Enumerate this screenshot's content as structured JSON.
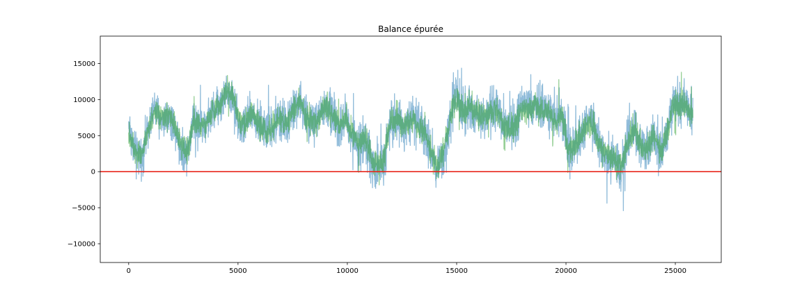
{
  "chart_data": {
    "type": "line",
    "title": "Balance épurée",
    "xlabel": "",
    "ylabel": "",
    "xlim": [
      -1300,
      27100
    ],
    "ylim": [
      -12600,
      18800
    ],
    "grid": false,
    "x_ticks": [
      0,
      5000,
      10000,
      15000,
      20000,
      25000
    ],
    "x_tick_labels": [
      "0",
      "5000",
      "10000",
      "15000",
      "20000",
      "25000"
    ],
    "y_ticks": [
      -10000,
      -5000,
      0,
      5000,
      10000,
      15000
    ],
    "y_tick_labels": [
      "−10000",
      "−5000",
      "0",
      "5000",
      "10000",
      "15000"
    ],
    "series": [
      {
        "color": "#1f77b4",
        "opacity": 0.5,
        "x": [
          0,
          300,
          600,
          900,
          1200,
          1500,
          1800,
          2100,
          2400,
          2700,
          3000,
          3300,
          3600,
          3900,
          4200,
          4500,
          4800,
          5100,
          5400,
          5700,
          6000,
          6300,
          6600,
          6900,
          7200,
          7500,
          7800,
          8100,
          8400,
          8700,
          9000,
          9300,
          9600,
          9900,
          10200,
          10500,
          10800,
          11100,
          11400,
          11700,
          12000,
          12300,
          12600,
          12900,
          13200,
          13500,
          13800,
          14100,
          14400,
          14700,
          15000,
          15300,
          15600,
          15900,
          16200,
          16500,
          16800,
          17100,
          17400,
          17700,
          18000,
          18300,
          18600,
          18900,
          19200,
          19500,
          19800,
          20100,
          20400,
          20700,
          21000,
          21300,
          21600,
          21900,
          22200,
          22500,
          22800,
          23100,
          23400,
          23700,
          24000,
          24300,
          24600,
          24900,
          25200,
          25500,
          25800
        ],
        "center": [
          6500,
          2500,
          2000,
          6500,
          9000,
          7000,
          8000,
          6500,
          3000,
          3000,
          7500,
          6500,
          7000,
          8500,
          9500,
          11000,
          10000,
          6000,
          7000,
          8000,
          6500,
          5500,
          6000,
          7500,
          6500,
          8500,
          9500,
          8000,
          6500,
          7500,
          9000,
          8000,
          6000,
          7500,
          5500,
          3000,
          4500,
          1500,
          0,
          2000,
          7500,
          7500,
          6000,
          7500,
          6500,
          5500,
          3000,
          0,
          2500,
          7500,
          10500,
          8500,
          9000,
          8000,
          7500,
          8000,
          9000,
          6500,
          6000,
          6500,
          9500,
          8500,
          9000,
          9000,
          8500,
          7000,
          8500,
          3000,
          3500,
          5000,
          7500,
          6000,
          2500,
          2000,
          2000,
          0,
          4000,
          6500,
          4000,
          3000,
          5500,
          2500,
          5000,
          9500,
          10000,
          9000,
          8000
        ],
        "band": [
          4500,
          4500,
          4000,
          4000,
          4000,
          4000,
          4000,
          4000,
          4500,
          4500,
          4500,
          4000,
          4000,
          4000,
          4000,
          4000,
          4000,
          4500,
          4500,
          4500,
          4500,
          4500,
          4500,
          4500,
          4500,
          4500,
          4500,
          4500,
          4500,
          4500,
          4500,
          4500,
          4500,
          4500,
          4500,
          4500,
          4500,
          5000,
          5000,
          5000,
          5000,
          5000,
          4500,
          4500,
          4500,
          4500,
          4500,
          5000,
          5000,
          5000,
          5000,
          5000,
          5000,
          4500,
          4500,
          4500,
          4500,
          4500,
          5000,
          5000,
          5000,
          4500,
          4500,
          4500,
          4500,
          4500,
          4500,
          5000,
          5000,
          4500,
          4500,
          4500,
          4500,
          4500,
          4500,
          5000,
          5000,
          4500,
          4500,
          4500,
          4500,
          5000,
          5000,
          5000,
          5000,
          4500,
          4500
        ]
      },
      {
        "color": "#2ca02c",
        "opacity": 0.5,
        "x": [
          0,
          300,
          600,
          900,
          1200,
          1500,
          1800,
          2100,
          2400,
          2700,
          3000,
          3300,
          3600,
          3900,
          4200,
          4500,
          4800,
          5100,
          5400,
          5700,
          6000,
          6300,
          6600,
          6900,
          7200,
          7500,
          7800,
          8100,
          8400,
          8700,
          9000,
          9300,
          9600,
          9900,
          10200,
          10500,
          10800,
          11100,
          11400,
          11700,
          12000,
          12300,
          12600,
          12900,
          13200,
          13500,
          13800,
          14100,
          14400,
          14700,
          15000,
          15300,
          15600,
          15900,
          16200,
          16500,
          16800,
          17100,
          17400,
          17700,
          18000,
          18300,
          18600,
          18900,
          19200,
          19500,
          19800,
          20100,
          20400,
          20700,
          21000,
          21300,
          21600,
          21900,
          22200,
          22500,
          22800,
          23100,
          23400,
          23700,
          24000,
          24300,
          24600,
          24900,
          25200,
          25500,
          25800
        ],
        "center": [
          5500,
          3000,
          2500,
          6000,
          8500,
          7000,
          8000,
          6500,
          3500,
          3000,
          7500,
          6500,
          7000,
          8500,
          9500,
          11500,
          10000,
          6500,
          7000,
          8000,
          6500,
          5500,
          6000,
          7500,
          6500,
          8500,
          9500,
          8000,
          6500,
          7500,
          9000,
          8000,
          6500,
          7500,
          5500,
          3500,
          5000,
          2000,
          500,
          2500,
          7000,
          7500,
          6000,
          7500,
          6500,
          5500,
          3500,
          500,
          3000,
          7500,
          10000,
          8500,
          9000,
          8000,
          7500,
          8000,
          9000,
          6500,
          6000,
          6500,
          9000,
          8500,
          9000,
          8500,
          8500,
          7000,
          8000,
          3500,
          3500,
          5000,
          7000,
          6000,
          3000,
          2500,
          2000,
          500,
          4000,
          6000,
          4000,
          3000,
          5500,
          3000,
          5000,
          9000,
          9500,
          9000,
          7500
        ],
        "band": [
          2800,
          2800,
          2500,
          2500,
          2500,
          2500,
          2500,
          2500,
          2800,
          2800,
          2800,
          2500,
          2500,
          2500,
          2500,
          2800,
          2500,
          2800,
          2800,
          2800,
          2800,
          2800,
          2800,
          2800,
          2800,
          2800,
          2800,
          2800,
          2800,
          2800,
          2800,
          2800,
          2800,
          2800,
          2800,
          2800,
          2800,
          3000,
          3000,
          3000,
          3000,
          3000,
          2800,
          2800,
          2800,
          2800,
          2800,
          3000,
          3000,
          3000,
          3000,
          3000,
          3000,
          2800,
          2800,
          2800,
          2800,
          2800,
          3000,
          3000,
          3000,
          2800,
          2800,
          2800,
          2800,
          2800,
          2800,
          3000,
          3000,
          2800,
          2800,
          2800,
          2800,
          2800,
          2800,
          3000,
          3000,
          2800,
          2800,
          2800,
          2800,
          3000,
          3000,
          3000,
          3000,
          2800,
          2800
        ]
      }
    ],
    "reference_lines": [
      {
        "axis": "y",
        "value": 0,
        "color": "#e8261c"
      }
    ],
    "x_data_max": 25800
  }
}
